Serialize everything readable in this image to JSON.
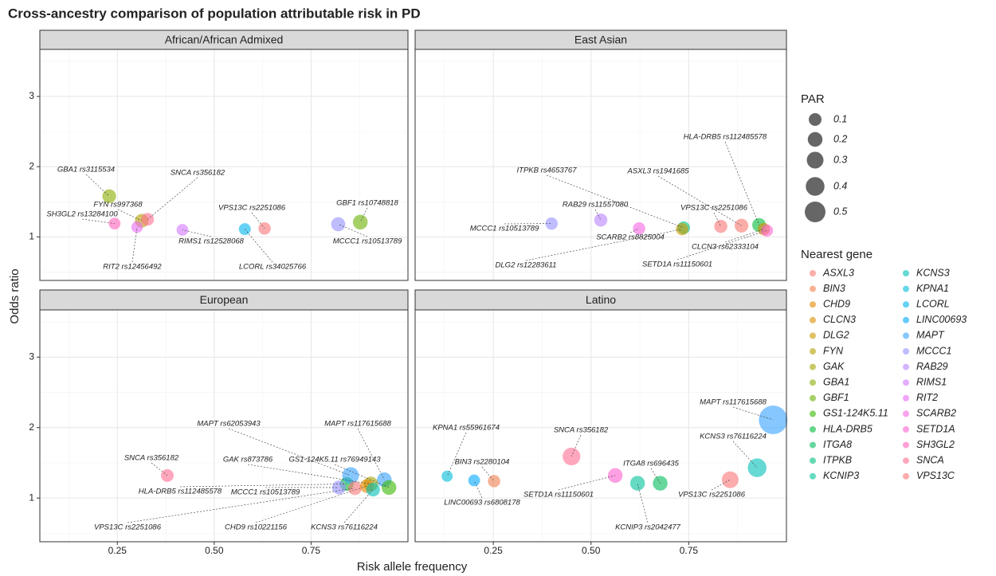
{
  "chart_data": {
    "type": "scatter",
    "title": "Cross-ancestry comparison of population attributable risk in PD",
    "xlabel": "Risk allele frequency",
    "ylabel": "Odds ratio",
    "xlim": [
      0.05,
      1.0
    ],
    "xticks": [
      0.25,
      {
        "value": 0.5,
        "label": "0.50"
      },
      0.75
    ],
    "xminor": [
      0.125,
      0.375,
      0.625,
      0.875
    ],
    "ylim": [
      0.38,
      3.67
    ],
    "yticks": [
      1,
      2,
      3
    ],
    "yminor": [
      0.5,
      1.5,
      2.5,
      3.5
    ],
    "grid": true,
    "size_legend": {
      "title": "PAR",
      "values": [
        0.1,
        0.2,
        0.3,
        0.4,
        0.5
      ]
    },
    "color_legend": {
      "title": "Nearest gene",
      "genes": [
        {
          "name": "ASXL3",
          "color": "#F8766D"
        },
        {
          "name": "BIN3",
          "color": "#F07F4C"
        },
        {
          "name": "CHD9",
          "color": "#E58700"
        },
        {
          "name": "CLCN3",
          "color": "#D89000"
        },
        {
          "name": "DLG2",
          "color": "#C99800"
        },
        {
          "name": "FYN",
          "color": "#B79F00"
        },
        {
          "name": "GAK",
          "color": "#A3A500"
        },
        {
          "name": "GBA1",
          "color": "#8BAB00"
        },
        {
          "name": "GBF1",
          "color": "#6BB100"
        },
        {
          "name": "GS1-124K5.11",
          "color": "#39B600"
        },
        {
          "name": "HLA-DRB5",
          "color": "#00BA38"
        },
        {
          "name": "ITGA8",
          "color": "#00BD5C"
        },
        {
          "name": "ITPKB",
          "color": "#00BF7D"
        },
        {
          "name": "KCNIP3",
          "color": "#00C19A"
        },
        {
          "name": "KCNS3",
          "color": "#00C0B8"
        },
        {
          "name": "KPNA1",
          "color": "#00BCD8"
        },
        {
          "name": "LCORL",
          "color": "#00B4EF"
        },
        {
          "name": "LINC00693",
          "color": "#00A9FF"
        },
        {
          "name": "MAPT",
          "color": "#35A2FF"
        },
        {
          "name": "MCCC1",
          "color": "#9590FF"
        },
        {
          "name": "RAB29",
          "color": "#B983FF"
        },
        {
          "name": "RIMS1",
          "color": "#D277FF"
        },
        {
          "name": "RIT2",
          "color": "#E76BF3"
        },
        {
          "name": "SCARB2",
          "color": "#F564E3"
        },
        {
          "name": "SETD1A",
          "color": "#FD61D1"
        },
        {
          "name": "SH3GL2",
          "color": "#FF62BC"
        },
        {
          "name": "SNCA",
          "color": "#FF6C91"
        },
        {
          "name": "VPS13C",
          "color": "#FA7476"
        }
      ]
    },
    "panels": [
      {
        "title": "African/African Admixed",
        "points": [
          {
            "label": "GBA1 rs3115534",
            "x": 0.229,
            "y": 1.58,
            "par": 0.15,
            "color": "#8BAB00"
          },
          {
            "label": "FYN rs997368",
            "x": 0.313,
            "y": 1.23,
            "par": 0.15,
            "color": "#B79F00"
          },
          {
            "label": "SNCA rs356182",
            "x": 0.328,
            "y": 1.25,
            "par": 0.1,
            "color": "#FF6C91"
          },
          {
            "label": "SH3GL2 rs13284100",
            "x": 0.243,
            "y": 1.19,
            "par": 0.05,
            "color": "#FF62BC"
          },
          {
            "label": "RIT2 rs12456492",
            "x": 0.301,
            "y": 1.14,
            "par": 0.04,
            "color": "#E76BF3"
          },
          {
            "label": "RIMS1 rs12528068",
            "x": 0.418,
            "y": 1.1,
            "par": 0.05,
            "color": "#D277FF"
          },
          {
            "label": "VPS13C rs2251086",
            "x": 0.63,
            "y": 1.12,
            "par": 0.08,
            "color": "#FA7476"
          },
          {
            "label": "LCORL rs34025766",
            "x": 0.579,
            "y": 1.11,
            "par": 0.06,
            "color": "#00B4EF"
          },
          {
            "label": "GBF1 rs10748818",
            "x": 0.877,
            "y": 1.21,
            "par": 0.2,
            "color": "#6BB100"
          },
          {
            "label": "MCCC1 rs10513789",
            "x": 0.82,
            "y": 1.18,
            "par": 0.17,
            "color": "#9590FF"
          }
        ]
      },
      {
        "title": "East Asian",
        "points": [
          {
            "label": "HLA-DRB5 rs112485578",
            "x": 0.93,
            "y": 1.17,
            "par": 0.15,
            "color": "#00BA38"
          },
          {
            "label": "ITPKB rs4653767",
            "x": 0.737,
            "y": 1.13,
            "par": 0.1,
            "color": "#00BF7D"
          },
          {
            "label": "DLG2 rs12283611",
            "x": 0.733,
            "y": 1.11,
            "par": 0.08,
            "color": "#C99800"
          },
          {
            "label": "ASXL3 rs1941685",
            "x": 0.885,
            "y": 1.16,
            "par": 0.15,
            "color": "#F8766D"
          },
          {
            "label": "RAB29 rs11557080",
            "x": 0.525,
            "y": 1.24,
            "par": 0.12,
            "color": "#B983FF"
          },
          {
            "label": "VPS13C rs2251086",
            "x": 0.832,
            "y": 1.15,
            "par": 0.12,
            "color": "#FA7476"
          },
          {
            "label": "MCCC1 rs10513789",
            "x": 0.399,
            "y": 1.19,
            "par": 0.08,
            "color": "#9590FF"
          },
          {
            "label": "SCARB2 rs8825004",
            "x": 0.623,
            "y": 1.12,
            "par": 0.08,
            "color": "#F564E3"
          },
          {
            "label": "CLCN3 rs62333104",
            "x": 0.942,
            "y": 1.11,
            "par": 0.08,
            "color": "#D89000"
          },
          {
            "label": "SETD1A rs11150601",
            "x": 0.95,
            "y": 1.09,
            "par": 0.07,
            "color": "#FD61D1"
          }
        ]
      },
      {
        "title": "European",
        "points": [
          {
            "label": "SNCA rs356182",
            "x": 0.379,
            "y": 1.32,
            "par": 0.1,
            "color": "#FF6C91"
          },
          {
            "label": "HLA-DRB5 rs112485578",
            "x": 0.842,
            "y": 1.2,
            "par": 0.15,
            "color": "#00BA38"
          },
          {
            "label": "MAPT rs62053943",
            "x": 0.852,
            "y": 1.32,
            "par": 0.3,
            "color": "#35A2FF"
          },
          {
            "label": "MAPT rs117615688",
            "x": 0.939,
            "y": 1.26,
            "par": 0.2,
            "color": "#35A2FF"
          },
          {
            "label": "GAK rs873786",
            "x": 0.904,
            "y": 1.2,
            "par": 0.2,
            "color": "#A3A500"
          },
          {
            "label": "GS1-124K5.11 rs76949143",
            "x": 0.951,
            "y": 1.15,
            "par": 0.2,
            "color": "#39B600"
          },
          {
            "label": "MCCC1 rs10513789",
            "x": 0.822,
            "y": 1.15,
            "par": 0.15,
            "color": "#9590FF"
          },
          {
            "label": "VPS13C rs2251086",
            "x": 0.863,
            "y": 1.14,
            "par": 0.15,
            "color": "#FA7476"
          },
          {
            "label": "CHD9 rs10221156",
            "x": 0.894,
            "y": 1.17,
            "par": 0.15,
            "color": "#E58700"
          },
          {
            "label": "KCNS3 rs76116224",
            "x": 0.91,
            "y": 1.12,
            "par": 0.15,
            "color": "#00C0B8"
          }
        ]
      },
      {
        "title": "Latino",
        "points": [
          {
            "label": "MAPT rs117615688",
            "x": 0.966,
            "y": 2.11,
            "par": 0.9,
            "color": "#35A2FF"
          },
          {
            "label": "KCNS3 rs76116224",
            "x": 0.925,
            "y": 1.43,
            "par": 0.4,
            "color": "#00C0B8"
          },
          {
            "label": "KPNA1 rs55961674",
            "x": 0.132,
            "y": 1.31,
            "par": 0.02,
            "color": "#00BCD8"
          },
          {
            "label": "BIN3 rs2280104",
            "x": 0.252,
            "y": 1.24,
            "par": 0.08,
            "color": "#F07F4C"
          },
          {
            "label": "LINC00693 rs6808178",
            "x": 0.201,
            "y": 1.25,
            "par": 0.05,
            "color": "#00A9FF"
          },
          {
            "label": "SNCA rs356182",
            "x": 0.45,
            "y": 1.59,
            "par": 0.35,
            "color": "#FF6C91"
          },
          {
            "label": "SETD1A rs11150601",
            "x": 0.562,
            "y": 1.32,
            "par": 0.2,
            "color": "#FD61D1"
          },
          {
            "label": "ITGA8 rs696435",
            "x": 0.677,
            "y": 1.21,
            "par": 0.2,
            "color": "#00BD5C"
          },
          {
            "label": "KCNIP3 rs2042477",
            "x": 0.619,
            "y": 1.21,
            "par": 0.2,
            "color": "#00C19A"
          },
          {
            "label": "VPS13C rs2251086",
            "x": 0.856,
            "y": 1.26,
            "par": 0.3,
            "color": "#FA7476"
          }
        ]
      }
    ]
  }
}
